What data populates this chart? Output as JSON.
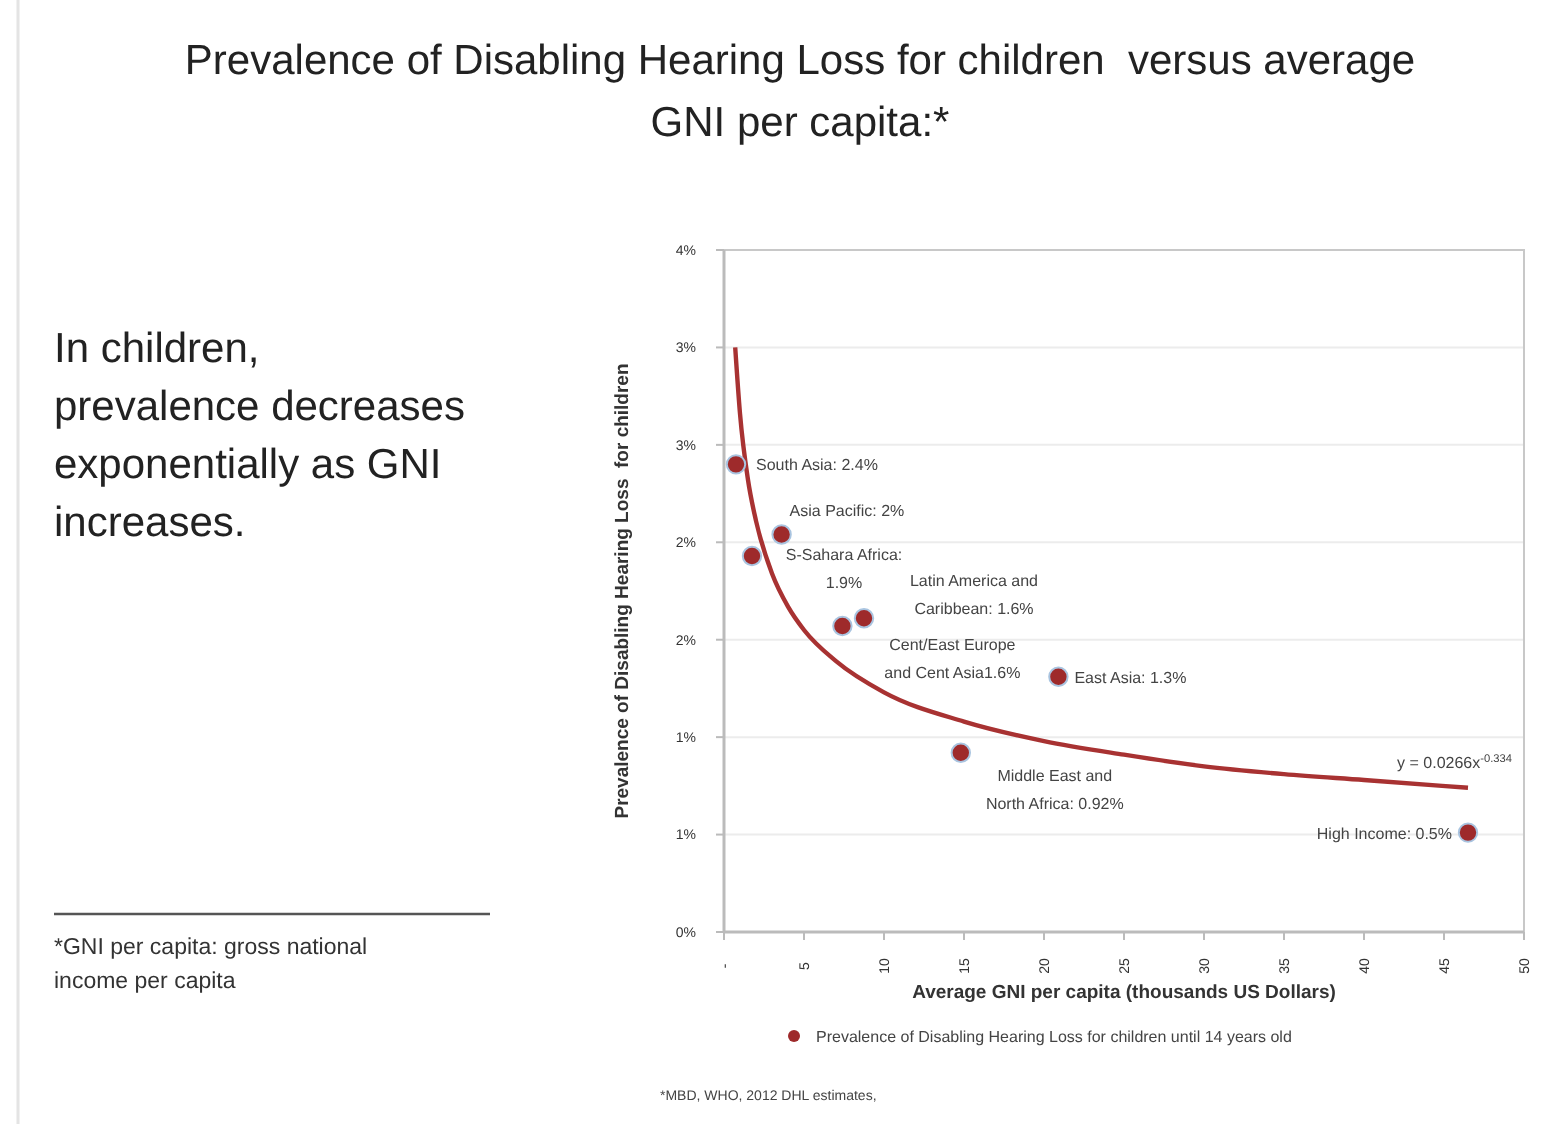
{
  "chart_data": {
    "type": "scatter",
    "title": "Prevalence of Disabling Hearing Loss for children  versus average GNI per capita:*",
    "xlabel": "Average GNI per capita (thousands US Dollars)",
    "ylabel": "Prevalence of Disabling Hearing Loss  for children",
    "xlim": [
      0,
      50
    ],
    "xticks": [
      {
        "value": 0,
        "label": "-"
      },
      5,
      10,
      15,
      20,
      25,
      30,
      35,
      40,
      45,
      50
    ],
    "ylim": [
      0,
      3.5
    ],
    "yticks": [
      {
        "value": 0,
        "label": "0%"
      },
      {
        "value": 0.5,
        "label": "1%"
      },
      {
        "value": 1,
        "label": "1%"
      },
      {
        "value": 1.5,
        "label": "2%"
      },
      {
        "value": 2,
        "label": "2%"
      },
      {
        "value": 2.5,
        "label": "3%"
      },
      {
        "value": 3,
        "label": "3%"
      },
      {
        "value": 3.5,
        "label": "4%"
      }
    ],
    "grid": "y",
    "legend": "bottom",
    "series": [
      {
        "name": "Prevalence of Disabling Hearing Loss for children until 14 years old",
        "marker": "circle",
        "color": "#9e2a2b",
        "x": [
          0.75,
          3.6,
          1.75,
          8.75,
          7.4,
          20.9,
          14.8,
          46.5
        ],
        "values": [
          2.4,
          2.04,
          1.93,
          1.61,
          1.57,
          1.31,
          0.92,
          0.51
        ]
      },
      {
        "type": "line",
        "color": "#a83232",
        "x": [
          0.7,
          1,
          1.5,
          2,
          3,
          4,
          5,
          7,
          10,
          15,
          20,
          25,
          30,
          35,
          40,
          46.5
        ],
        "values": [
          3.0,
          2.66,
          2.32,
          2.11,
          1.84,
          1.67,
          1.55,
          1.39,
          1.23,
          1.08,
          0.98,
          0.91,
          0.85,
          0.81,
          0.78,
          0.74
        ]
      }
    ],
    "annotations": [
      {
        "text": "South Asia: 2.4%",
        "x": 0.75,
        "y": 2.4
      },
      {
        "text": "Asia Pacific: 2%",
        "x": 3.6,
        "y": 2.04
      },
      {
        "text": "S-Sahara Africa: 1.9%",
        "x": 1.75,
        "y": 1.93
      },
      {
        "text": "Latin America and Caribbean: 1.6%",
        "x": 8.75,
        "y": 1.61
      },
      {
        "text": "Cent/East Europe and Cent Asia1.6%",
        "x": 7.4,
        "y": 1.57
      },
      {
        "text": "East Asia: 1.3%",
        "x": 20.9,
        "y": 1.31
      },
      {
        "text": "Middle East and North Africa: 0.92%",
        "x": 14.8,
        "y": 0.92
      },
      {
        "text": "High Income: 0.5%",
        "x": 46.5,
        "y": 0.51
      },
      {
        "text": "y = 0.0266x$^{-0.334}$",
        "x": 46.5,
        "y": 0.74
      },
      "In children, prevalence decreases exponentially as GNI increases.",
      "*GNI per capita: gross national income per capita",
      "*MBD, WHO, 2012 DHL estimates,"
    ]
  }
}
